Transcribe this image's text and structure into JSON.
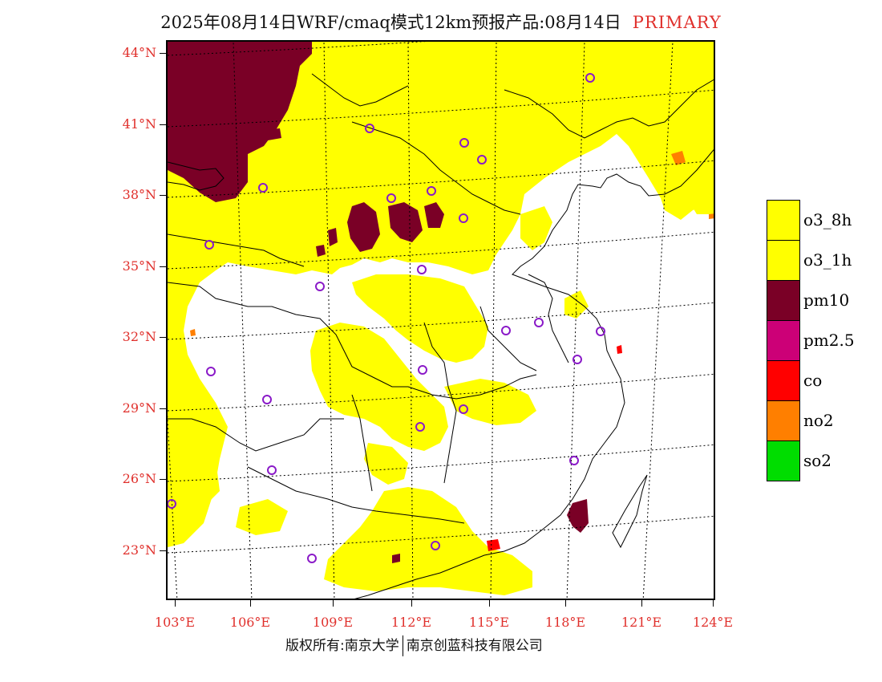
{
  "header": {
    "title": "2025年08月14日WRF/cmaq模式12km预报产品:08月14日",
    "primary_label": "PRIMARY"
  },
  "map": {
    "lat_labels": [
      "44°N",
      "41°N",
      "38°N",
      "35°N",
      "32°N",
      "29°N",
      "26°N",
      "23°N"
    ],
    "lon_labels": [
      "103°E",
      "106°E",
      "109°E",
      "112°E",
      "115°E",
      "118°E",
      "121°E",
      "124°E"
    ],
    "colors": {
      "o3_8h": "#ffff00",
      "o3_1h": "#ffff00",
      "pm10": "#7a0026",
      "pm2_5": "#cc0077",
      "co": "#ff0000",
      "no2": "#ff7f00",
      "so2": "#00dd00",
      "label_red": "#e0302c",
      "site_marker": "#8a1ac8"
    }
  },
  "legend": {
    "items": [
      {
        "label": "o3_8h",
        "color": "#ffff00"
      },
      {
        "label": "o3_1h",
        "color": "#ffff00"
      },
      {
        "label": "pm10",
        "color": "#7a0026"
      },
      {
        "label": "pm2.5",
        "color": "#cc0077"
      },
      {
        "label": "co",
        "color": "#ff0000"
      },
      {
        "label": "no2",
        "color": "#ff7f00"
      },
      {
        "label": "so2",
        "color": "#00dd00"
      }
    ]
  },
  "footer": {
    "copyright": "版权所有:南京大学",
    "company": "南京创蓝科技有限公司"
  }
}
